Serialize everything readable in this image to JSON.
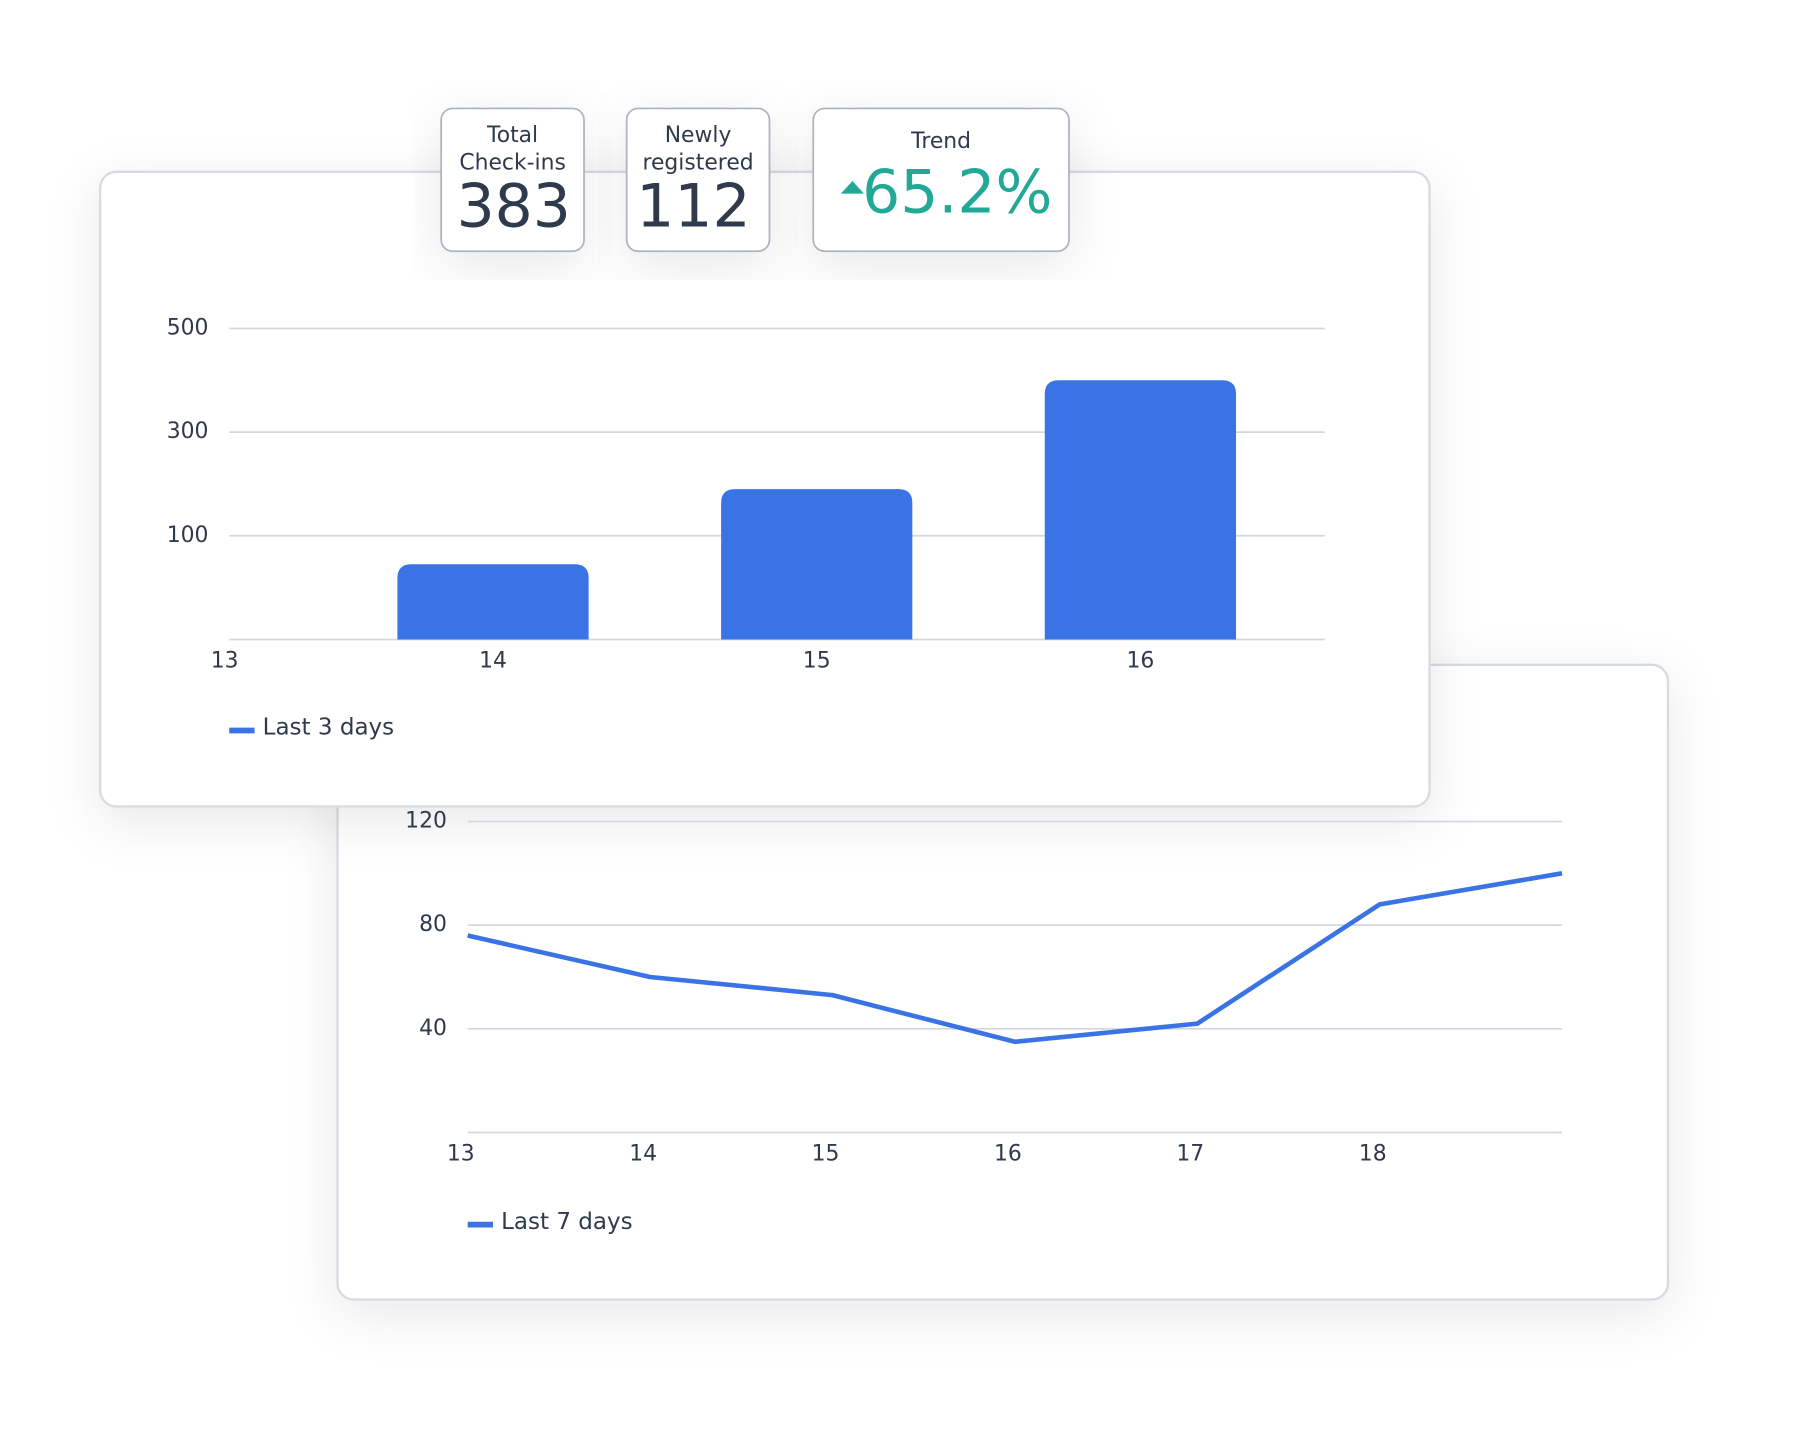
{
  "kpis": [
    {
      "label": [
        "Total",
        "Check-ins"
      ],
      "value": 383
    },
    {
      "label": [
        "Newly",
        "registered"
      ],
      "value": 112
    },
    {
      "label": [
        "Trend"
      ],
      "value": "65.2%"
    }
  ],
  "chart_data": [
    {
      "type": "bar",
      "categories": [
        "13",
        "14",
        "15",
        "16"
      ],
      "series": [
        {
          "name": "Last 3 days",
          "color": "#3a73e6",
          "values": [
            null,
            45,
            190,
            400
          ]
        }
      ],
      "ylim": [
        -100,
        500
      ],
      "yticks": [
        100,
        300,
        500
      ],
      "grid": true
    },
    {
      "type": "line",
      "categories": [
        "13",
        "14",
        "15",
        "16",
        "17",
        "18",
        null
      ],
      "series": [
        {
          "name": "Last 7 days",
          "color": "#3a73e6",
          "values": [
            76,
            60,
            53,
            35,
            42,
            88,
            100
          ]
        }
      ],
      "ylim": [
        0,
        120
      ],
      "yticks": [
        40,
        80,
        120
      ],
      "grid": true
    }
  ]
}
